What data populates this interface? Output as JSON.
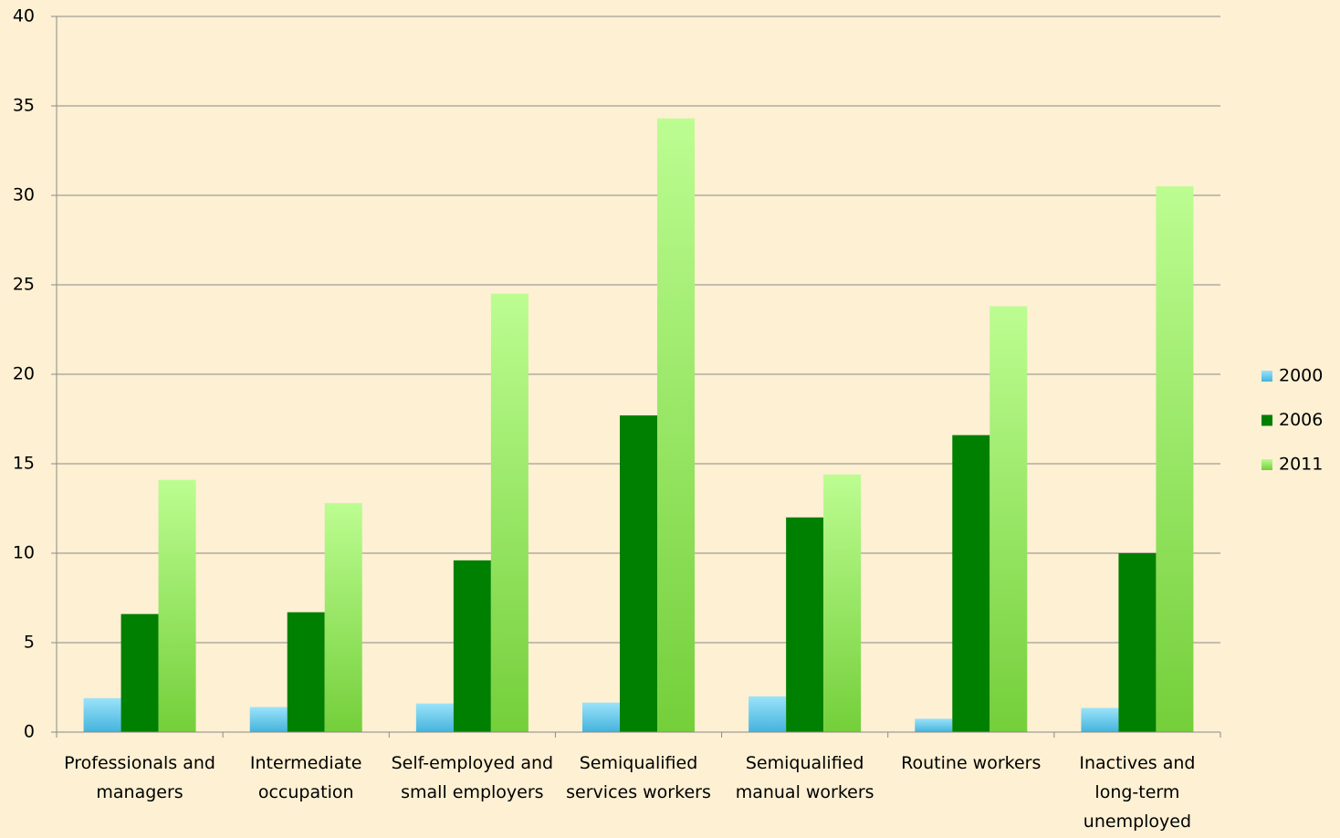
{
  "chart_data": {
    "type": "bar",
    "categories": [
      "Professionals and managers",
      "Intermediate occupation",
      "Self-employed and small employers",
      "Semiqualified services workers",
      "Semiqualified manual workers",
      "Routine workers",
      "Inactives and long-term unemployed"
    ],
    "series": [
      {
        "name": "2000",
        "color": "#6ccbee",
        "values": [
          1.9,
          1.4,
          1.6,
          1.65,
          2.0,
          0.75,
          1.35
        ]
      },
      {
        "name": "2006",
        "color": "#008000",
        "values": [
          6.6,
          6.7,
          9.6,
          17.7,
          12.0,
          16.6,
          10.0
        ]
      },
      {
        "name": "2011",
        "color": "#9be86a",
        "values": [
          14.1,
          12.8,
          24.5,
          34.3,
          14.4,
          23.8,
          30.5
        ]
      }
    ],
    "ylim": [
      0,
      40
    ],
    "yticks": [
      0,
      5,
      10,
      15,
      20,
      25,
      30,
      35,
      40
    ],
    "grid": true,
    "legend": "right"
  }
}
